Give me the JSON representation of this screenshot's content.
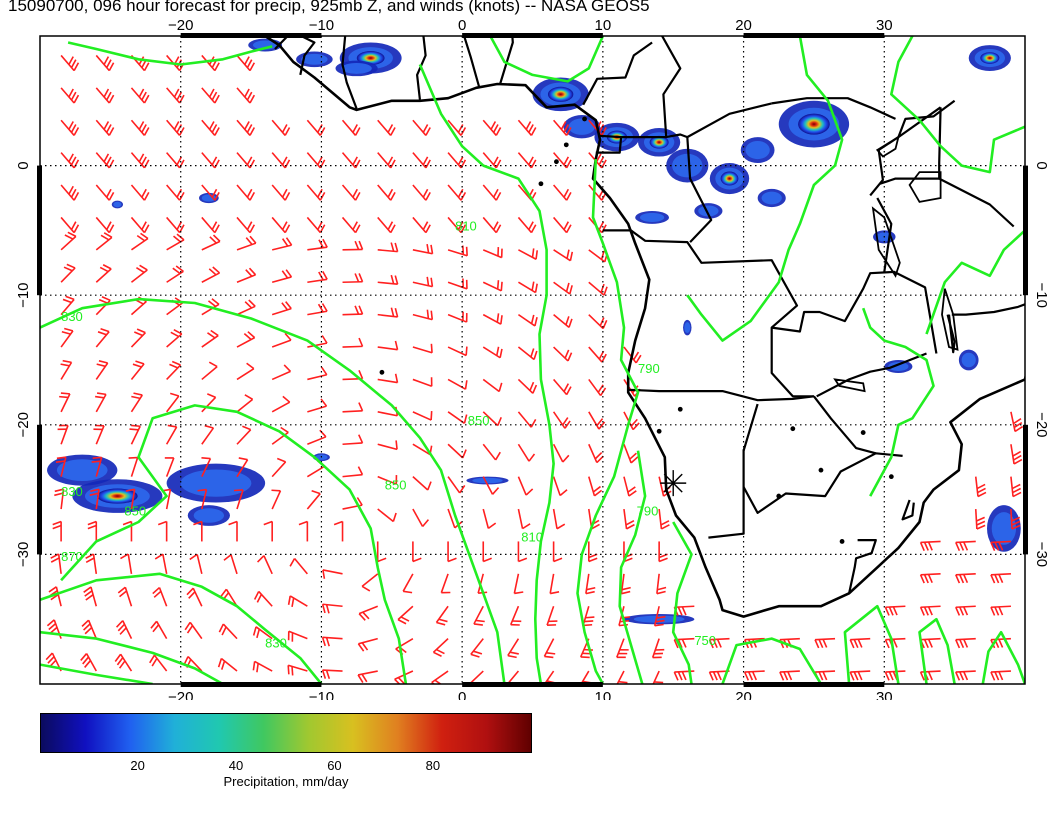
{
  "title": "15090700, 096 hour forecast for precip, 925mb Z, and winds (knots) -- NASA GEOS5",
  "map": {
    "lon_range": [
      -30,
      40
    ],
    "lat_range": [
      -40,
      10
    ],
    "lon_ticks": [
      {
        "value": -20,
        "label": "−20"
      },
      {
        "value": -10,
        "label": "−10"
      },
      {
        "value": 0,
        "label": "0"
      },
      {
        "value": 10,
        "label": "10"
      },
      {
        "value": 20,
        "label": "20"
      },
      {
        "value": 30,
        "label": "30"
      }
    ],
    "lat_ticks": [
      {
        "value": 0,
        "label": "0"
      },
      {
        "value": -10,
        "label": "−10"
      },
      {
        "value": -20,
        "label": "−20"
      },
      {
        "value": -30,
        "label": "−30"
      }
    ],
    "contour_labels": [
      {
        "label": "830",
        "lon": -28.5,
        "lat": -12
      },
      {
        "label": "830",
        "lon": -28.5,
        "lat": -25.5
      },
      {
        "label": "830",
        "lon": -14,
        "lat": -37.2
      },
      {
        "label": "850",
        "lon": -24,
        "lat": -27
      },
      {
        "label": "850",
        "lon": -5.5,
        "lat": -25
      },
      {
        "label": "850",
        "lon": 0.4,
        "lat": -20
      },
      {
        "label": "870",
        "lon": -28.5,
        "lat": -30.5
      },
      {
        "label": "810",
        "lon": -0.5,
        "lat": -5
      },
      {
        "label": "810",
        "lon": 4.2,
        "lat": -29
      },
      {
        "label": "790",
        "lon": 12.4,
        "lat": -27
      },
      {
        "label": "750",
        "lon": 16.5,
        "lat": -37
      },
      {
        "label": "790",
        "lon": 12.5,
        "lat": -16
      }
    ],
    "marker": {
      "lon": 15,
      "lat": -24.5
    }
  },
  "colorbar": {
    "title": "Precipitation, mm/day",
    "range": [
      0,
      100
    ],
    "ticks": [
      {
        "value": 20,
        "label": "20"
      },
      {
        "value": 40,
        "label": "40"
      },
      {
        "value": 60,
        "label": "60"
      },
      {
        "value": 80,
        "label": "80"
      }
    ],
    "colors": [
      "#0b0b5e",
      "#1010c0",
      "#2060f0",
      "#20b0d8",
      "#20c8b0",
      "#40c860",
      "#a0c830",
      "#d8c020",
      "#e08020",
      "#d02010",
      "#b01010",
      "#600000"
    ]
  },
  "colors": {
    "wind_barbs": "#ff2020",
    "height_contours": "#22ee22",
    "coastlines": "#000000",
    "gridlines": "#000000"
  }
}
